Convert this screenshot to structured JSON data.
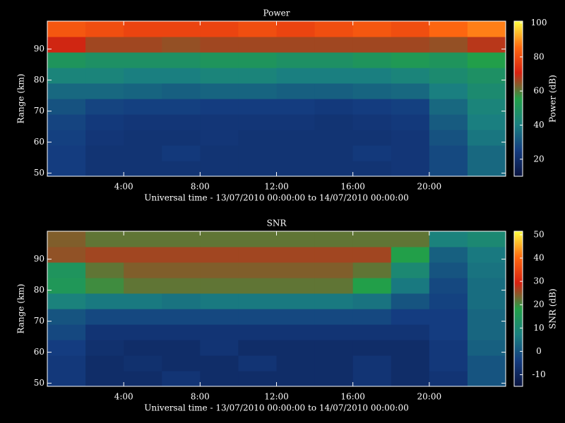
{
  "chart_data": [
    {
      "type": "heatmap",
      "title": "Power",
      "xlabel": "Universal time - 13/07/2010 00:00:00 to 14/07/2010 00:00:00",
      "ylabel": "Range (km)",
      "colorbar_label": "Power (dB)",
      "xlim": [
        0,
        24
      ],
      "ylim": [
        49,
        99
      ],
      "zlim": [
        10,
        101
      ],
      "xticks": [
        {
          "value": 4,
          "label": "4:00"
        },
        {
          "value": 8,
          "label": "8:00"
        },
        {
          "value": 12,
          "label": "12:00"
        },
        {
          "value": 16,
          "label": "16:00"
        },
        {
          "value": 20,
          "label": "20:00"
        }
      ],
      "yticks": [
        50,
        60,
        70,
        80,
        90
      ],
      "zticks": [
        20,
        40,
        60,
        80,
        100
      ],
      "colormap": [
        "#0a1440",
        "#143c80",
        "#1a8080",
        "#22a048",
        "#d82010",
        "#ff6a10",
        "#ffff40"
      ],
      "x_bins": [
        0,
        2,
        4,
        6,
        8,
        10,
        12,
        14,
        16,
        18,
        20,
        22,
        24
      ],
      "y_bins": [
        49,
        54,
        59,
        64,
        69,
        74,
        79,
        84,
        89,
        94,
        99
      ],
      "z": [
        [
          25,
          22,
          22,
          22,
          22,
          22,
          22,
          22,
          22,
          23,
          28,
          35
        ],
        [
          25,
          22,
          22,
          24,
          22,
          22,
          22,
          22,
          24,
          23,
          28,
          35
        ],
        [
          26,
          23,
          22,
          22,
          23,
          22,
          22,
          22,
          22,
          23,
          30,
          38
        ],
        [
          27,
          24,
          23,
          23,
          23,
          23,
          23,
          22,
          23,
          24,
          32,
          40
        ],
        [
          30,
          27,
          26,
          26,
          25,
          25,
          25,
          24,
          25,
          26,
          35,
          42
        ],
        [
          35,
          35,
          34,
          33,
          34,
          34,
          33,
          33,
          34,
          35,
          40,
          45
        ],
        [
          42,
          42,
          40,
          40,
          42,
          42,
          40,
          40,
          40,
          42,
          45,
          48
        ],
        [
          50,
          48,
          48,
          48,
          50,
          50,
          48,
          48,
          50,
          52,
          50,
          55
        ],
        [
          70,
          66,
          66,
          65,
          66,
          66,
          66,
          66,
          66,
          66,
          65,
          68
        ],
        [
          82,
          80,
          78,
          78,
          78,
          80,
          78,
          80,
          82,
          80,
          85,
          88
        ]
      ]
    },
    {
      "type": "heatmap",
      "title": "SNR",
      "xlabel": "Universal time - 13/07/2010 00:00:00 to 14/07/2010 00:00:00",
      "ylabel": "Range (km)",
      "colorbar_label": "SNR (dB)",
      "xlim": [
        0,
        24
      ],
      "ylim": [
        49,
        99
      ],
      "zlim": [
        -15,
        51.5
      ],
      "xticks": [
        {
          "value": 4,
          "label": "4:00"
        },
        {
          "value": 8,
          "label": "8:00"
        },
        {
          "value": 12,
          "label": "12:00"
        },
        {
          "value": 16,
          "label": "16:00"
        },
        {
          "value": 20,
          "label": "20:00"
        }
      ],
      "yticks": [
        50,
        60,
        70,
        80,
        90
      ],
      "zticks": [
        -10,
        0,
        10,
        20,
        30,
        40,
        50
      ],
      "colormap": [
        "#0a1440",
        "#143c80",
        "#1a8080",
        "#22a048",
        "#d82010",
        "#ff6a10",
        "#ffff40"
      ],
      "x_bins": [
        0,
        2,
        4,
        6,
        8,
        10,
        12,
        14,
        16,
        18,
        20,
        22,
        24
      ],
      "y_bins": [
        49,
        54,
        59,
        64,
        69,
        74,
        79,
        84,
        89,
        94,
        99
      ],
      "z": [
        [
          -5,
          -8,
          -8,
          -6,
          -8,
          -8,
          -8,
          -8,
          -6,
          -8,
          -6,
          0
        ],
        [
          -5,
          -8,
          -7,
          -8,
          -8,
          -6,
          -8,
          -8,
          -6,
          -8,
          -5,
          0
        ],
        [
          -4,
          -7,
          -8,
          -8,
          -6,
          -8,
          -8,
          -8,
          -8,
          -8,
          -5,
          2
        ],
        [
          -2,
          -6,
          -6,
          -6,
          -6,
          -6,
          -6,
          -6,
          -6,
          -6,
          -4,
          3
        ],
        [
          0,
          -2,
          -2,
          -2,
          -2,
          -2,
          -2,
          -2,
          -2,
          -4,
          -4,
          3
        ],
        [
          8,
          6,
          6,
          5,
          6,
          6,
          6,
          6,
          5,
          0,
          -3,
          4
        ],
        [
          15,
          20,
          22,
          22,
          22,
          22,
          22,
          22,
          18,
          6,
          -2,
          4
        ],
        [
          14,
          22,
          24,
          24,
          24,
          24,
          24,
          24,
          22,
          10,
          0,
          5
        ],
        [
          25,
          26,
          26,
          26,
          26,
          26,
          26,
          26,
          26,
          18,
          2,
          6
        ],
        [
          24,
          22,
          22,
          22,
          22,
          22,
          22,
          22,
          22,
          22,
          8,
          10
        ]
      ]
    }
  ]
}
